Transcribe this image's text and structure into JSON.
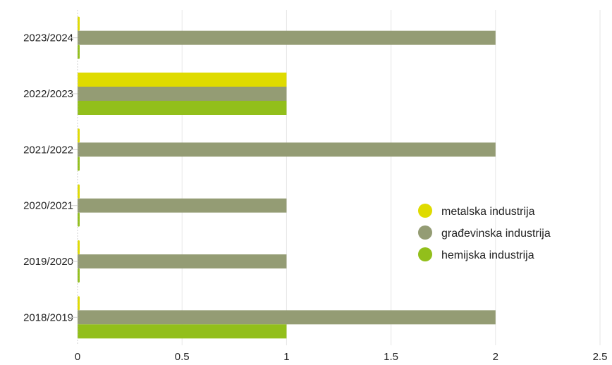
{
  "chart_data": {
    "type": "bar",
    "orientation": "horizontal",
    "categories": [
      "2023/2024",
      "2022/2023",
      "2021/2022",
      "2020/2021",
      "2019/2020",
      "2018/2019"
    ],
    "series": [
      {
        "name": "metalska industrija",
        "color": "#dfdb00",
        "values": [
          0,
          1,
          0,
          0,
          0,
          0
        ]
      },
      {
        "name": "građevinska industrija",
        "color": "#949c74",
        "values": [
          2,
          1,
          2,
          1,
          1,
          2
        ]
      },
      {
        "name": "hemijska industrija",
        "color": "#92bf1b",
        "values": [
          0,
          1,
          0,
          0,
          0,
          1
        ]
      }
    ],
    "xlim": [
      0,
      2.5
    ],
    "xticks": [
      0,
      0.5,
      1,
      1.5,
      2,
      2.5
    ],
    "xtick_labels": [
      "0",
      "0.5",
      "1",
      "1.5",
      "2",
      "2.5"
    ],
    "grid": "vertical",
    "legend_position": "right"
  }
}
